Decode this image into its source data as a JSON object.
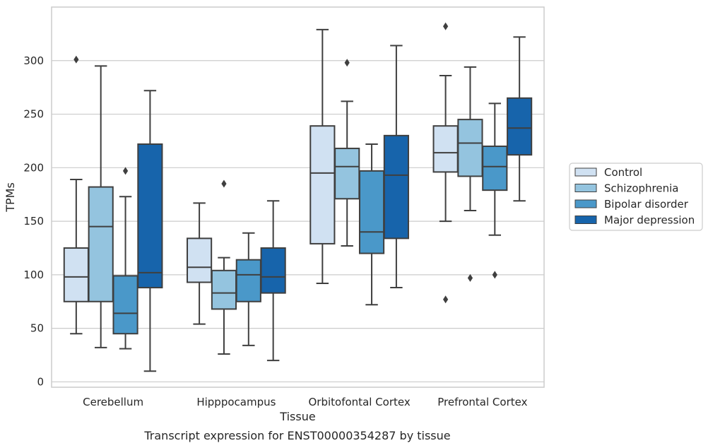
{
  "chart_data": {
    "type": "boxplot",
    "title": "",
    "caption": "Transcript expression for ENST00000354287 by tissue",
    "xlabel": "Tissue",
    "ylabel": "TPMs",
    "ylim": [
      -5,
      350
    ],
    "yticks": [
      0,
      50,
      100,
      150,
      200,
      250,
      300
    ],
    "grid": "horizontal",
    "legend_position": "right",
    "categories": [
      "Cerebellum",
      "Hipppocampus",
      "Orbitofontal Cortex",
      "Prefrontal Cortex"
    ],
    "series": [
      {
        "name": "Control",
        "color": "#d0e1f2",
        "boxes": [
          {
            "whisker_low": 45,
            "q1": 75,
            "median": 98,
            "q3": 125,
            "whisker_high": 189,
            "outliers": [
              301
            ]
          },
          {
            "whisker_low": 54,
            "q1": 93,
            "median": 107,
            "q3": 134,
            "whisker_high": 167,
            "outliers": []
          },
          {
            "whisker_low": 92,
            "q1": 129,
            "median": 195,
            "q3": 239,
            "whisker_high": 329,
            "outliers": []
          },
          {
            "whisker_low": 150,
            "q1": 196,
            "median": 214,
            "q3": 239,
            "whisker_high": 286,
            "outliers": [
              332,
              77
            ]
          }
        ]
      },
      {
        "name": "Schizophrenia",
        "color": "#94c4df",
        "boxes": [
          {
            "whisker_low": 32,
            "q1": 75,
            "median": 145,
            "q3": 182,
            "whisker_high": 295,
            "outliers": []
          },
          {
            "whisker_low": 26,
            "q1": 68,
            "median": 83,
            "q3": 104,
            "whisker_high": 116,
            "outliers": [
              185
            ]
          },
          {
            "whisker_low": 127,
            "q1": 171,
            "median": 201,
            "q3": 218,
            "whisker_high": 262,
            "outliers": [
              298
            ]
          },
          {
            "whisker_low": 160,
            "q1": 192,
            "median": 223,
            "q3": 245,
            "whisker_high": 294,
            "outliers": [
              97
            ]
          }
        ]
      },
      {
        "name": "Bipolar disorder",
        "color": "#4a98c9",
        "boxes": [
          {
            "whisker_low": 31,
            "q1": 45,
            "median": 64,
            "q3": 99,
            "whisker_high": 173,
            "outliers": [
              197
            ]
          },
          {
            "whisker_low": 34,
            "q1": 75,
            "median": 100,
            "q3": 114,
            "whisker_high": 139,
            "outliers": []
          },
          {
            "whisker_low": 72,
            "q1": 120,
            "median": 140,
            "q3": 197,
            "whisker_high": 222,
            "outliers": []
          },
          {
            "whisker_low": 137,
            "q1": 179,
            "median": 201,
            "q3": 220,
            "whisker_high": 260,
            "outliers": [
              100
            ]
          }
        ]
      },
      {
        "name": "Major depression",
        "color": "#1764ab",
        "boxes": [
          {
            "whisker_low": 10,
            "q1": 88,
            "median": 102,
            "q3": 222,
            "whisker_high": 272,
            "outliers": []
          },
          {
            "whisker_low": 20,
            "q1": 83,
            "median": 98,
            "q3": 125,
            "whisker_high": 169,
            "outliers": []
          },
          {
            "whisker_low": 88,
            "q1": 134,
            "median": 193,
            "q3": 230,
            "whisker_high": 314,
            "outliers": []
          },
          {
            "whisker_low": 169,
            "q1": 212,
            "median": 237,
            "q3": 265,
            "whisker_high": 322,
            "outliers": []
          }
        ]
      }
    ]
  }
}
